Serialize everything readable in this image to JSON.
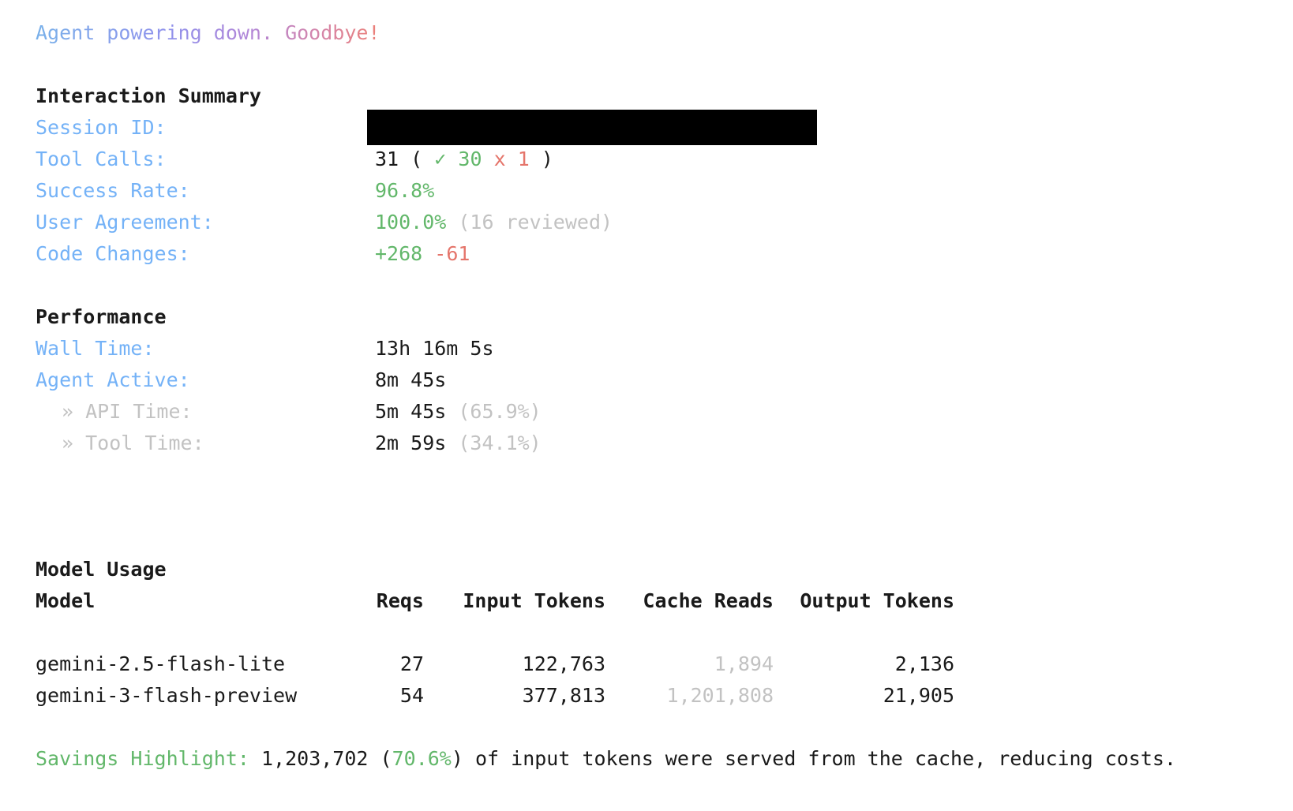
{
  "goodbye_line": "Agent powering down. Goodbye!",
  "interaction_summary": {
    "title": "Interaction Summary",
    "session_id_label": "Session ID:",
    "tool_calls_label": "Tool Calls:",
    "tool_calls": {
      "total": "31",
      "open_paren": "(",
      "check_icon": "✓",
      "success_count": "30",
      "fail_icon": "x",
      "fail_count": "1",
      "close_paren": ")"
    },
    "success_rate_label": "Success Rate:",
    "success_rate_value": "96.8%",
    "user_agreement_label": "User Agreement:",
    "user_agreement_value": "100.0%",
    "user_agreement_note": "(16 reviewed)",
    "code_changes_label": "Code Changes:",
    "code_changes_added": "+268",
    "code_changes_removed": "-61"
  },
  "performance": {
    "title": "Performance",
    "wall_time_label": "Wall Time:",
    "wall_time_value": "13h 16m 5s",
    "agent_active_label": "Agent Active:",
    "agent_active_value": "8m 45s",
    "sub_arrow": "»",
    "api_time_label": "API Time:",
    "api_time_value": "5m 45s",
    "api_time_pct": "(65.9%)",
    "tool_time_label": "Tool Time:",
    "tool_time_value": "2m 59s",
    "tool_time_pct": "(34.1%)"
  },
  "model_usage": {
    "title": "Model Usage",
    "columns": [
      "Model",
      "Reqs",
      "Input Tokens",
      "Cache Reads",
      "Output Tokens"
    ],
    "rows": [
      {
        "model": "gemini-2.5-flash-lite",
        "reqs": "27",
        "input_tokens": "122,763",
        "cache_reads": "1,894",
        "output_tokens": "2,136"
      },
      {
        "model": "gemini-3-flash-preview",
        "reqs": "54",
        "input_tokens": "377,813",
        "cache_reads": "1,201,808",
        "output_tokens": "21,905"
      }
    ]
  },
  "savings": {
    "label": "Savings Highlight:",
    "amount": "1,203,702",
    "open_paren": "(",
    "percent": "70.6%",
    "close_paren": ")",
    "rest": "of input tokens were served from the cache, reducing costs."
  },
  "colors": {
    "label_blue": "#74b2f7",
    "success_green": "#62b76a",
    "error_red": "#e5756b",
    "muted_gray": "#c2c2c2",
    "text_black": "#1a1a1a",
    "redaction_black": "#000000",
    "goodbye_gradient": [
      "#79b1ea",
      "#8f92ec",
      "#b287d8",
      "#d685a8",
      "#ec8076"
    ]
  }
}
